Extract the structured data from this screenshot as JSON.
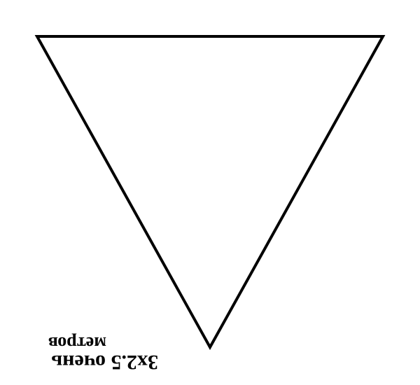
{
  "sign": {
    "shape": "inverted-triangle",
    "stroke_color": "#000000",
    "fill_color": "#ffffff"
  },
  "caption": {
    "orientation": "upside-down",
    "line1": "3x2.5 очень",
    "line2": "метров"
  }
}
